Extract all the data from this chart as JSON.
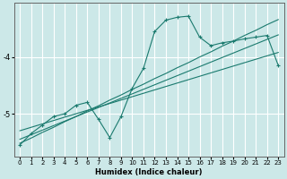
{
  "xlabel": "Humidex (Indice chaleur)",
  "ylabel": "",
  "background_color": "#cce8e8",
  "grid_color": "#ffffff",
  "line_color": "#1a7a6e",
  "x_data": [
    0,
    1,
    2,
    3,
    4,
    5,
    6,
    7,
    8,
    9,
    10,
    11,
    12,
    13,
    14,
    15,
    16,
    17,
    18,
    19,
    20,
    21,
    22,
    23
  ],
  "y_main": [
    -5.55,
    -5.35,
    -5.2,
    -5.05,
    -5.0,
    -4.85,
    -4.8,
    -5.1,
    -5.42,
    -5.05,
    -4.55,
    -4.2,
    -3.55,
    -3.35,
    -3.3,
    -3.28,
    -3.65,
    -3.8,
    -3.75,
    -3.72,
    -3.68,
    -3.65,
    -3.62,
    -4.15
  ],
  "y_line1": [
    -5.3,
    -5.24,
    -5.18,
    -5.12,
    -5.06,
    -5.0,
    -4.94,
    -4.88,
    -4.82,
    -4.76,
    -4.7,
    -4.64,
    -4.58,
    -4.52,
    -4.46,
    -4.4,
    -4.34,
    -4.28,
    -4.22,
    -4.16,
    -4.1,
    -4.04,
    -3.98,
    -3.92
  ],
  "y_line2": [
    -5.45,
    -5.37,
    -5.29,
    -5.21,
    -5.13,
    -5.05,
    -4.97,
    -4.89,
    -4.81,
    -4.73,
    -4.65,
    -4.57,
    -4.49,
    -4.41,
    -4.33,
    -4.25,
    -4.17,
    -4.09,
    -4.01,
    -3.93,
    -3.85,
    -3.77,
    -3.69,
    -3.61
  ],
  "y_line3": [
    -5.52,
    -5.43,
    -5.33,
    -5.24,
    -5.14,
    -5.05,
    -4.95,
    -4.86,
    -4.76,
    -4.67,
    -4.57,
    -4.48,
    -4.38,
    -4.29,
    -4.19,
    -4.1,
    -4.0,
    -3.91,
    -3.81,
    -3.72,
    -3.62,
    -3.53,
    -3.43,
    -3.34
  ],
  "xlim": [
    -0.5,
    23.5
  ],
  "ylim": [
    -5.75,
    -3.05
  ],
  "yticks": [
    -5,
    -4
  ],
  "xticks": [
    0,
    1,
    2,
    3,
    4,
    5,
    6,
    7,
    8,
    9,
    10,
    11,
    12,
    13,
    14,
    15,
    16,
    17,
    18,
    19,
    20,
    21,
    22,
    23
  ]
}
